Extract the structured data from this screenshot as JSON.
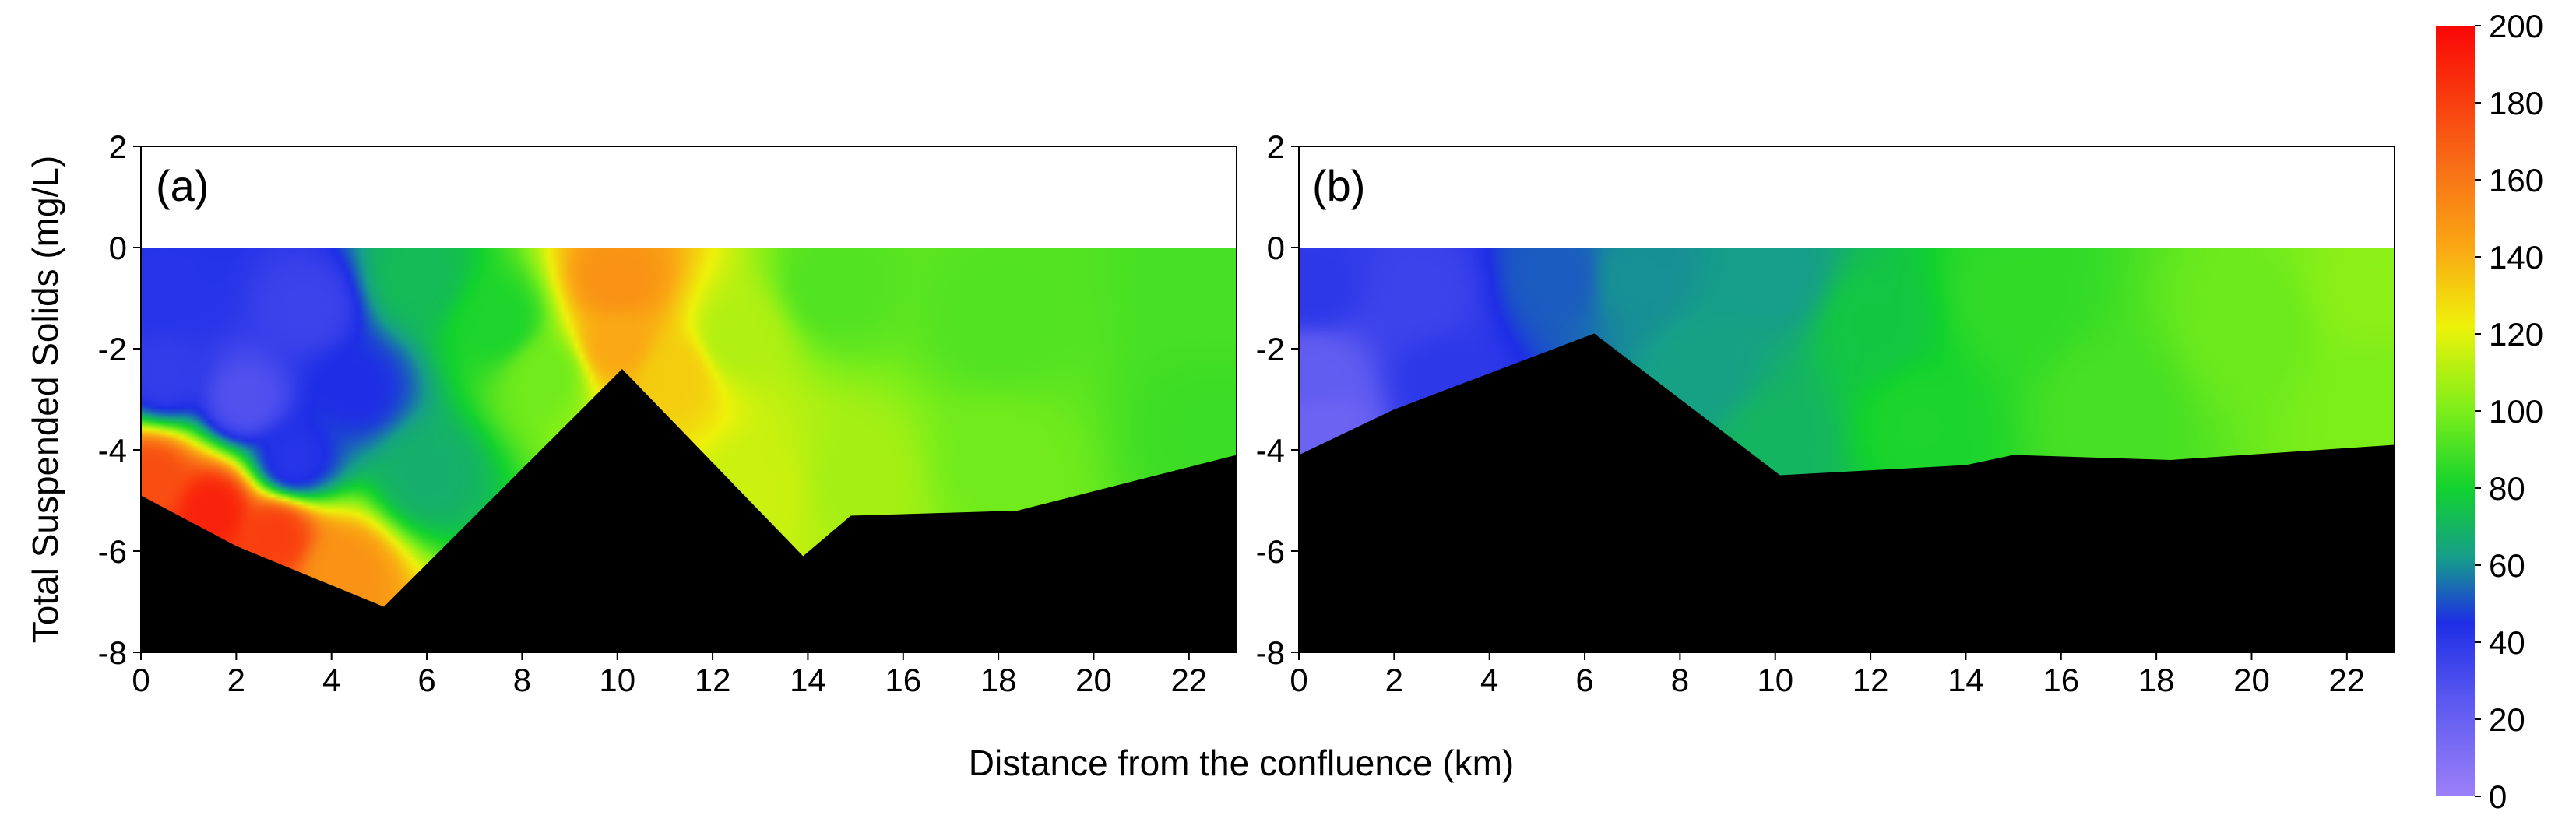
{
  "colors": {
    "bathymetry": "#000000",
    "frame": "#000000",
    "background": "#ffffff"
  },
  "colorbar": {
    "min": 0,
    "max": 200,
    "ticks": [
      0,
      20,
      40,
      60,
      80,
      100,
      120,
      140,
      160,
      180,
      200
    ],
    "stops": [
      {
        "value": 0,
        "color": "#9c80f8"
      },
      {
        "value": 25,
        "color": "#5a58f0"
      },
      {
        "value": 45,
        "color": "#1e2ee6"
      },
      {
        "value": 62,
        "color": "#169e8a"
      },
      {
        "value": 80,
        "color": "#12d22e"
      },
      {
        "value": 100,
        "color": "#7cee1a"
      },
      {
        "value": 122,
        "color": "#eef20a"
      },
      {
        "value": 142,
        "color": "#faa814"
      },
      {
        "value": 165,
        "color": "#f86a16"
      },
      {
        "value": 200,
        "color": "#fa0606"
      }
    ]
  },
  "chart_data": [
    {
      "type": "heatmap",
      "panel_label": "(a)",
      "ylabel": "Total Suspended Solids (mg/L)",
      "xlim": [
        0,
        23
      ],
      "ylim": [
        -8,
        2
      ],
      "x_ticks": [
        0,
        2,
        4,
        6,
        8,
        10,
        12,
        14,
        16,
        18,
        20,
        22
      ],
      "y_ticks": [
        -8,
        -6,
        -4,
        -2,
        0,
        2
      ],
      "water_surface": 0,
      "riverbed": [
        [
          0,
          -4.9
        ],
        [
          2,
          -5.9
        ],
        [
          5.1,
          -7.1
        ],
        [
          10.1,
          -2.4
        ],
        [
          13.9,
          -6.1
        ],
        [
          14.9,
          -5.3
        ],
        [
          18.4,
          -5.2
        ],
        [
          23,
          -4.1
        ]
      ],
      "tss_samples": [
        {
          "x": 0.5,
          "y": -0.8,
          "value": 42
        },
        {
          "x": 0.5,
          "y": -2.5,
          "value": 38
        },
        {
          "x": 0.2,
          "y": -4.6,
          "value": 175
        },
        {
          "x": 1.5,
          "y": -5.2,
          "value": 190
        },
        {
          "x": 2.2,
          "y": -3.0,
          "value": 28
        },
        {
          "x": 2.8,
          "y": -5.7,
          "value": 180
        },
        {
          "x": 3.5,
          "y": -1.2,
          "value": 35
        },
        {
          "x": 3.2,
          "y": -4.2,
          "value": 42
        },
        {
          "x": 4.2,
          "y": -6.4,
          "value": 150
        },
        {
          "x": 4.5,
          "y": -2.8,
          "value": 45
        },
        {
          "x": 5.8,
          "y": -0.6,
          "value": 72
        },
        {
          "x": 6.0,
          "y": -4.5,
          "value": 68
        },
        {
          "x": 7.5,
          "y": -1.5,
          "value": 82
        },
        {
          "x": 8.5,
          "y": -2.5,
          "value": 98
        },
        {
          "x": 10.0,
          "y": -0.7,
          "value": 150
        },
        {
          "x": 10.0,
          "y": -1.9,
          "value": 142
        },
        {
          "x": 11.2,
          "y": -2.5,
          "value": 132
        },
        {
          "x": 12.5,
          "y": -1.8,
          "value": 110
        },
        {
          "x": 13.0,
          "y": -4.8,
          "value": 115
        },
        {
          "x": 14.5,
          "y": -0.8,
          "value": 92
        },
        {
          "x": 15.0,
          "y": -4.6,
          "value": 108
        },
        {
          "x": 18.0,
          "y": -1.5,
          "value": 92
        },
        {
          "x": 18.0,
          "y": -4.2,
          "value": 98
        },
        {
          "x": 22.5,
          "y": -0.8,
          "value": 90
        },
        {
          "x": 22.5,
          "y": -3.6,
          "value": 88
        }
      ]
    },
    {
      "type": "heatmap",
      "panel_label": "(b)",
      "xlim": [
        0,
        23
      ],
      "ylim": [
        -8,
        2
      ],
      "x_ticks": [
        0,
        2,
        4,
        6,
        8,
        10,
        12,
        14,
        16,
        18,
        20,
        22
      ],
      "y_ticks": [
        -8,
        -6,
        -4,
        -2,
        0,
        2
      ],
      "water_surface": 0,
      "riverbed": [
        [
          0,
          -4.1
        ],
        [
          2,
          -3.2
        ],
        [
          6.2,
          -1.7
        ],
        [
          10.1,
          -4.5
        ],
        [
          14,
          -4.3
        ],
        [
          15,
          -4.1
        ],
        [
          18.3,
          -4.2
        ],
        [
          23,
          -3.9
        ]
      ],
      "tss_samples": [
        {
          "x": 0.3,
          "y": -0.8,
          "value": 40
        },
        {
          "x": 0.3,
          "y": -2.5,
          "value": 22
        },
        {
          "x": 0.5,
          "y": -3.6,
          "value": 18
        },
        {
          "x": 2.5,
          "y": -1.0,
          "value": 35
        },
        {
          "x": 3.0,
          "y": -2.6,
          "value": 40
        },
        {
          "x": 5.5,
          "y": -0.6,
          "value": 52
        },
        {
          "x": 7.0,
          "y": -0.6,
          "value": 60
        },
        {
          "x": 8.5,
          "y": -2.5,
          "value": 63
        },
        {
          "x": 10.0,
          "y": -0.6,
          "value": 62
        },
        {
          "x": 10.0,
          "y": -3.8,
          "value": 70
        },
        {
          "x": 12.0,
          "y": -1.5,
          "value": 76
        },
        {
          "x": 13.0,
          "y": -3.5,
          "value": 82
        },
        {
          "x": 15.0,
          "y": -1.0,
          "value": 86
        },
        {
          "x": 17.0,
          "y": -3.2,
          "value": 90
        },
        {
          "x": 20.0,
          "y": -1.5,
          "value": 97
        },
        {
          "x": 22.5,
          "y": -0.8,
          "value": 103
        },
        {
          "x": 22.5,
          "y": -3.2,
          "value": 100
        }
      ]
    }
  ],
  "shared": {
    "xlabel": "Distance from the confluence (km)"
  }
}
